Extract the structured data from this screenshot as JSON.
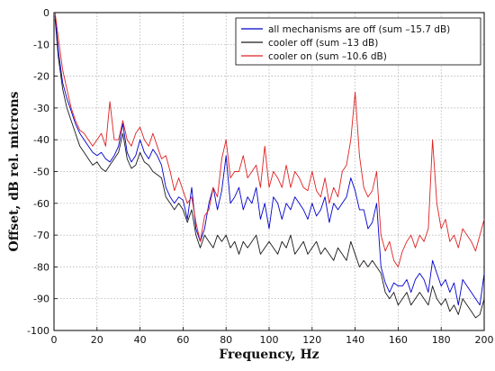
{
  "chart_data": {
    "type": "line",
    "title": "",
    "xlabel": "Frequency, Hz",
    "ylabel": "Offset, dB rel. microns",
    "xlim": [
      0,
      200
    ],
    "ylim": [
      -100,
      0
    ],
    "xticks": [
      0,
      20,
      40,
      60,
      80,
      100,
      120,
      140,
      160,
      180,
      200
    ],
    "yticks": [
      0,
      -10,
      -20,
      -30,
      -40,
      -50,
      -60,
      -70,
      -80,
      -90,
      -100
    ],
    "grid": true,
    "grid_style": "dotted",
    "legend_position": "top-right",
    "series": [
      {
        "name": "all mechanisms are off (sum –15.7 dB)",
        "color": "#0000cc",
        "x": [
          0.5,
          2,
          4,
          6,
          8,
          10,
          12,
          14,
          16,
          18,
          20,
          22,
          24,
          26,
          28,
          30,
          32,
          34,
          36,
          38,
          40,
          42,
          44,
          46,
          48,
          50,
          52,
          54,
          56,
          58,
          60,
          62,
          64,
          66,
          68,
          70,
          72,
          74,
          76,
          78,
          80,
          82,
          84,
          86,
          88,
          90,
          92,
          94,
          96,
          98,
          100,
          102,
          104,
          106,
          108,
          110,
          112,
          114,
          116,
          118,
          120,
          122,
          124,
          126,
          128,
          130,
          132,
          134,
          136,
          138,
          140,
          142,
          144,
          146,
          148,
          150,
          152,
          154,
          156,
          158,
          160,
          162,
          164,
          166,
          168,
          170,
          172,
          174,
          176,
          178,
          180,
          182,
          184,
          186,
          188,
          190,
          192,
          194,
          196,
          198,
          200
        ],
        "y": [
          -1,
          -12,
          -22,
          -27,
          -31,
          -35,
          -38,
          -40,
          -42,
          -44,
          -45,
          -44,
          -46,
          -47,
          -45,
          -42,
          -35,
          -44,
          -47,
          -45,
          -40,
          -44,
          -46,
          -43,
          -45,
          -48,
          -55,
          -58,
          -60,
          -58,
          -59,
          -65,
          -55,
          -68,
          -72,
          -68,
          -60,
          -55,
          -62,
          -56,
          -45,
          -60,
          -58,
          -55,
          -62,
          -58,
          -60,
          -55,
          -65,
          -60,
          -68,
          -58,
          -60,
          -65,
          -60,
          -62,
          -58,
          -60,
          -62,
          -65,
          -60,
          -64,
          -62,
          -58,
          -66,
          -60,
          -62,
          -60,
          -58,
          -52,
          -56,
          -62,
          -62,
          -68,
          -66,
          -60,
          -80,
          -85,
          -88,
          -85,
          -86,
          -86,
          -84,
          -88,
          -84,
          -82,
          -84,
          -88,
          -78,
          -82,
          -86,
          -84,
          -88,
          -85,
          -92,
          -84,
          -86,
          -88,
          -90,
          -92,
          -82
        ]
      },
      {
        "name": "cooler off (sum –13 dB)",
        "color": "#1a1a1a",
        "x": [
          0.5,
          2,
          4,
          6,
          8,
          10,
          12,
          14,
          16,
          18,
          20,
          22,
          24,
          26,
          28,
          30,
          32,
          34,
          36,
          38,
          40,
          42,
          44,
          46,
          48,
          50,
          52,
          54,
          56,
          58,
          60,
          62,
          64,
          66,
          68,
          70,
          72,
          74,
          76,
          78,
          80,
          82,
          84,
          86,
          88,
          90,
          92,
          94,
          96,
          98,
          100,
          102,
          104,
          106,
          108,
          110,
          112,
          114,
          116,
          118,
          120,
          122,
          124,
          126,
          128,
          130,
          132,
          134,
          136,
          138,
          140,
          142,
          144,
          146,
          148,
          150,
          152,
          154,
          156,
          158,
          160,
          162,
          164,
          166,
          168,
          170,
          172,
          174,
          176,
          178,
          180,
          182,
          184,
          186,
          188,
          190,
          192,
          194,
          196,
          198,
          200
        ],
        "y": [
          -2,
          -14,
          -24,
          -30,
          -34,
          -38,
          -42,
          -44,
          -46,
          -48,
          -47,
          -49,
          -50,
          -48,
          -46,
          -44,
          -38,
          -46,
          -49,
          -48,
          -44,
          -47,
          -48,
          -50,
          -51,
          -52,
          -58,
          -60,
          -62,
          -60,
          -62,
          -66,
          -62,
          -70,
          -74,
          -70,
          -72,
          -74,
          -70,
          -72,
          -70,
          -74,
          -72,
          -76,
          -72,
          -74,
          -72,
          -70,
          -76,
          -74,
          -72,
          -74,
          -76,
          -72,
          -74,
          -70,
          -76,
          -74,
          -72,
          -76,
          -74,
          -72,
          -76,
          -74,
          -76,
          -78,
          -74,
          -76,
          -78,
          -72,
          -76,
          -80,
          -78,
          -80,
          -78,
          -80,
          -82,
          -88,
          -90,
          -88,
          -92,
          -90,
          -88,
          -92,
          -90,
          -88,
          -90,
          -92,
          -86,
          -90,
          -92,
          -90,
          -94,
          -92,
          -95,
          -90,
          -92,
          -94,
          -96,
          -95,
          -90
        ]
      },
      {
        "name": "cooler on (sum –10.6 dB)",
        "color": "#dd2222",
        "x": [
          0.5,
          2,
          4,
          6,
          8,
          10,
          12,
          14,
          16,
          18,
          20,
          22,
          24,
          26,
          28,
          30,
          32,
          34,
          36,
          38,
          40,
          42,
          44,
          46,
          48,
          50,
          52,
          54,
          56,
          58,
          60,
          62,
          64,
          66,
          68,
          70,
          72,
          74,
          76,
          78,
          80,
          82,
          84,
          86,
          88,
          90,
          92,
          94,
          96,
          98,
          100,
          102,
          104,
          106,
          108,
          110,
          112,
          114,
          116,
          118,
          120,
          122,
          124,
          126,
          128,
          130,
          132,
          134,
          136,
          138,
          140,
          142,
          144,
          146,
          148,
          150,
          152,
          154,
          156,
          158,
          160,
          162,
          164,
          166,
          168,
          170,
          172,
          174,
          176,
          178,
          180,
          182,
          184,
          186,
          188,
          190,
          192,
          194,
          196,
          198,
          200
        ],
        "y": [
          0,
          -8,
          -18,
          -24,
          -30,
          -34,
          -37,
          -38,
          -40,
          -42,
          -40,
          -38,
          -42,
          -28,
          -40,
          -40,
          -34,
          -40,
          -42,
          -38,
          -36,
          -40,
          -42,
          -38,
          -42,
          -46,
          -45,
          -50,
          -56,
          -52,
          -56,
          -60,
          -58,
          -66,
          -72,
          -64,
          -62,
          -55,
          -58,
          -46,
          -40,
          -52,
          -50,
          -50,
          -45,
          -52,
          -50,
          -48,
          -55,
          -42,
          -55,
          -50,
          -52,
          -55,
          -48,
          -55,
          -50,
          -52,
          -55,
          -56,
          -50,
          -56,
          -58,
          -52,
          -60,
          -55,
          -58,
          -50,
          -48,
          -40,
          -25,
          -45,
          -55,
          -58,
          -56,
          -50,
          -70,
          -75,
          -72,
          -78,
          -80,
          -75,
          -72,
          -70,
          -74,
          -70,
          -72,
          -68,
          -40,
          -60,
          -68,
          -65,
          -72,
          -70,
          -74,
          -68,
          -70,
          -72,
          -75,
          -70,
          -65
        ]
      }
    ]
  }
}
